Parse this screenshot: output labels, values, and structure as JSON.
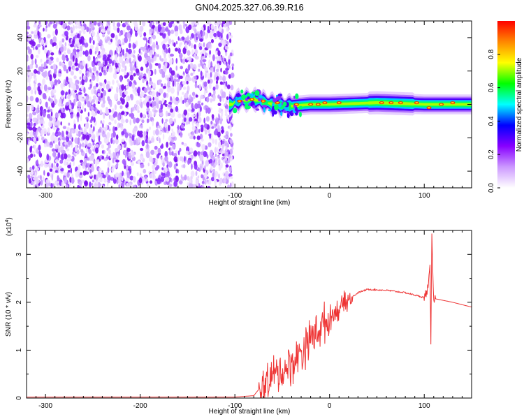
{
  "title": "GN04.2025.327.06.39.R16",
  "chart_data": [
    {
      "type": "heatmap",
      "xlabel": "Height of straight line (km)",
      "ylabel": "Frequency (Hz)",
      "xlim": [
        -320,
        150
      ],
      "ylim": [
        -50,
        50
      ],
      "x_ticks": [
        -300,
        -200,
        -100,
        0,
        100
      ],
      "y_ticks": [
        -40,
        -20,
        0,
        20,
        40
      ],
      "noise_region_x": [
        -320,
        -102
      ],
      "ridge_center_hz": [
        {
          "x": -100,
          "y": 2
        },
        {
          "x": -80,
          "y": 3
        },
        {
          "x": -60,
          "y": 0
        },
        {
          "x": -40,
          "y": -1
        },
        {
          "x": -20,
          "y": 0
        },
        {
          "x": 0,
          "y": 0
        },
        {
          "x": 50,
          "y": 1
        },
        {
          "x": 100,
          "y": 0
        },
        {
          "x": 150,
          "y": 0
        }
      ],
      "colorbar": {
        "label": "Normalized spectral amplitude",
        "range": [
          0,
          1
        ],
        "ticks": [
          0.0,
          0.2,
          0.4,
          0.6,
          0.8
        ],
        "colors": [
          "#ffffff",
          "#cc99ff",
          "#8800ff",
          "#0000ff",
          "#00ffff",
          "#00ff00",
          "#ffff00",
          "#ff8800",
          "#ff0000"
        ]
      }
    },
    {
      "type": "line",
      "xlabel": "Height of straight line (km)",
      "ylabel": "SNR (10 * v/v)",
      "y_multiplier": "(x10",
      "y_multiplier_exp": "4",
      "y_multiplier_close": ")",
      "xlim": [
        -320,
        150
      ],
      "ylim": [
        0,
        3.5
      ],
      "x_ticks": [
        -300,
        -200,
        -100,
        0,
        100
      ],
      "y_ticks": [
        0,
        1,
        2,
        3
      ],
      "color": "#ee3333",
      "series": [
        {
          "x": [
            -320,
            -200,
            -100,
            -80,
            -70,
            -60,
            -50,
            -40,
            -30,
            -20,
            -10,
            0,
            10,
            20,
            30,
            40,
            60,
            80,
            100,
            104,
            106,
            107,
            108,
            110,
            130,
            150
          ],
          "y": [
            0.02,
            0.02,
            0.02,
            0.05,
            0.3,
            0.5,
            0.6,
            0.75,
            1.0,
            1.3,
            1.5,
            1.7,
            1.9,
            2.05,
            2.2,
            2.27,
            2.25,
            2.2,
            2.1,
            2.3,
            2.7,
            1.2,
            3.4,
            2.08,
            2.0,
            1.9
          ]
        }
      ]
    }
  ]
}
